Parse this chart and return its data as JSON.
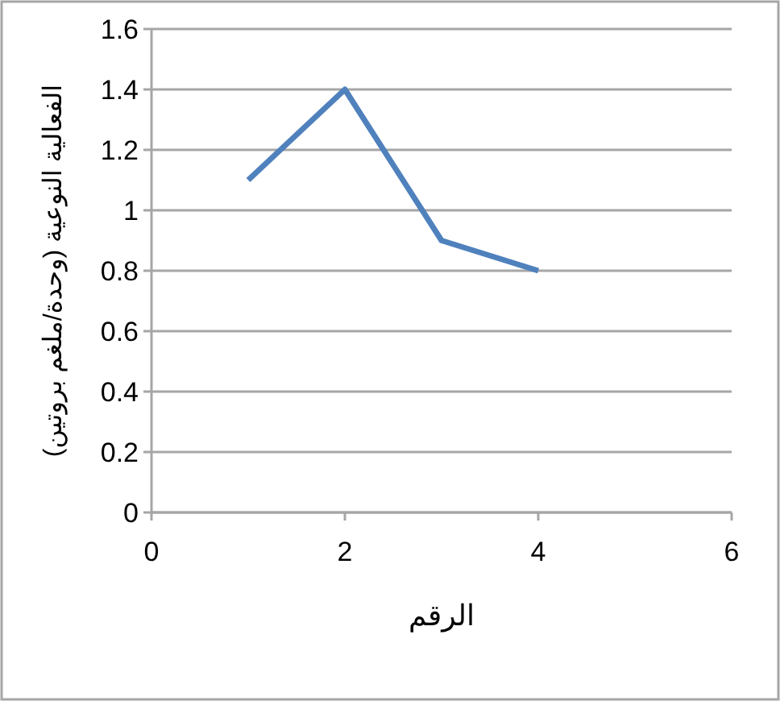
{
  "chart_data": {
    "type": "line",
    "xlabel": "الرقم",
    "ylabel": "الفعالية النوعية (وحدة/ملغم بروتين)",
    "x": [
      1,
      2,
      3,
      4
    ],
    "series": [
      {
        "color": "#4f81bd",
        "values": [
          1.1,
          1.4,
          0.9,
          0.8
        ]
      }
    ],
    "xlim": [
      0,
      6
    ],
    "xticks": [
      0,
      2,
      4,
      6
    ],
    "ylim": [
      0,
      1.6
    ],
    "yticks": [
      0,
      0.2,
      0.4,
      0.6,
      0.8,
      1,
      1.2,
      1.4,
      1.6
    ],
    "grid": "y",
    "marker": "none",
    "line_style": "solid"
  }
}
